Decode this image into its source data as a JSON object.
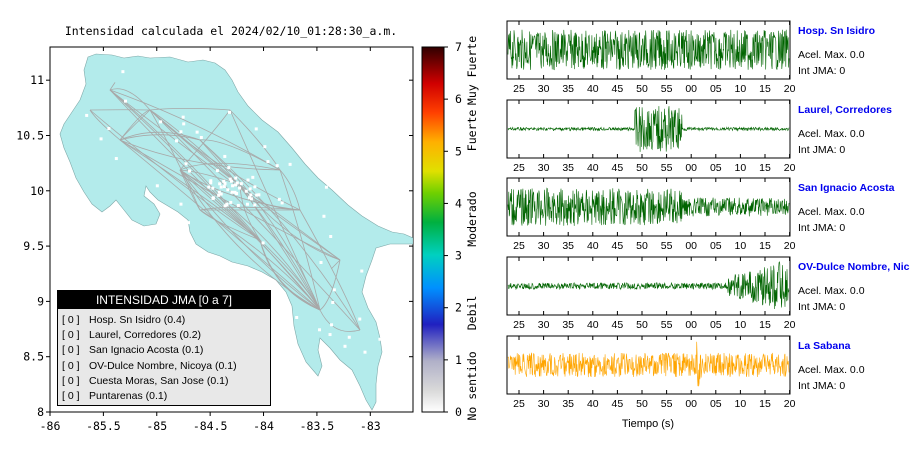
{
  "map": {
    "title": "Intensidad calculada el 2024/02/10_01:28:30_a.m.",
    "lon_ticks": [
      "-86",
      "-85.5",
      "-85",
      "-84.5",
      "-84",
      "-83.5",
      "-83"
    ],
    "lat_ticks": [
      "8",
      "8.5",
      "9",
      "9.5",
      "10",
      "10.5",
      "11"
    ],
    "land_color": "#b3ebeb",
    "road_color": "#b0b0b0"
  },
  "legend": {
    "header": "INTENSIDAD JMA [0 a 7]",
    "items": [
      {
        "code": "[ 0 ]",
        "label": "Hosp. Sn Isidro (0.4)"
      },
      {
        "code": "[ 0 ]",
        "label": "Laurel, Corredores (0.2)"
      },
      {
        "code": "[ 0 ]",
        "label": "San Ignacio Acosta (0.1)"
      },
      {
        "code": "[ 0 ]",
        "label": "OV-Dulce Nombre, Nicoya (0.1)"
      },
      {
        "code": "[ 0 ]",
        "label": "Cuesta Moras, San Jose (0.1)"
      },
      {
        "code": "[ 0 ]",
        "label": "Puntarenas (0.1)"
      }
    ]
  },
  "colorbar": {
    "ticks": [
      "0",
      "1",
      "2",
      "3",
      "4",
      "5",
      "6",
      "7"
    ],
    "labels": [
      "No sentido",
      "Debil",
      "Moderado",
      "Fuerte",
      "Muy Fuerte"
    ]
  },
  "waveforms": {
    "x_ticks": [
      "25",
      "30",
      "35",
      "40",
      "45",
      "50",
      "55",
      "00",
      "05",
      "10",
      "15",
      "20"
    ],
    "xlabel": "Tiempo (s)",
    "stations": [
      {
        "name": "Hosp. Sn Isidro",
        "acel": "Acel. Max. 0.0",
        "int": "Int JMA: 0",
        "color": "#006400"
      },
      {
        "name": "Laurel, Corredores",
        "acel": "Acel. Max. 0.0",
        "int": "Int JMA: 0",
        "color": "#006400"
      },
      {
        "name": "San Ignacio Acosta",
        "acel": "Acel. Max. 0.0",
        "int": "Int JMA: 0",
        "color": "#006400"
      },
      {
        "name": "OV-Dulce Nombre, Nicoya",
        "acel": "Acel. Max. 0.0",
        "int": "Int JMA: 0",
        "color": "#006400"
      },
      {
        "name": "La Sabana",
        "acel": "Acel. Max. 0.0",
        "int": "Int JMA: 0",
        "color": "#ffa500"
      }
    ],
    "station_name_color": "#0000ee"
  },
  "chart_data": [
    {
      "type": "scatter",
      "title": "Intensidad calculada el 2024/02/10_01:28:30_a.m.",
      "xlabel": "",
      "ylabel": "",
      "xlim": [
        -86,
        -82.6
      ],
      "ylim": [
        8,
        11.3
      ],
      "series": [
        {
          "name": "Hosp. Sn Isidro (0.4)",
          "intensity": 0
        },
        {
          "name": "Laurel, Corredores (0.2)",
          "intensity": 0
        },
        {
          "name": "San Ignacio Acosta (0.1)",
          "intensity": 0
        },
        {
          "name": "OV-Dulce Nombre, Nicoya (0.1)",
          "intensity": 0
        },
        {
          "name": "Cuesta Moras, San Jose (0.1)",
          "intensity": 0
        },
        {
          "name": "Puntarenas (0.1)",
          "intensity": 0
        }
      ],
      "legend": "bottom-left"
    },
    {
      "type": "heatmap",
      "title": "",
      "ylim": [
        0,
        7
      ],
      "ticks": [
        0,
        1,
        2,
        3,
        4,
        5,
        6,
        7
      ],
      "categories": [
        "No sentido",
        "Debil",
        "Moderado",
        "Fuerte",
        "Muy Fuerte"
      ]
    },
    {
      "type": "line",
      "title": "",
      "xlabel": "Tiempo (s)",
      "x_tick_labels": [
        "25",
        "30",
        "35",
        "40",
        "45",
        "50",
        "55",
        "00",
        "05",
        "10",
        "15",
        "20"
      ],
      "series": [
        {
          "name": "Hosp. Sn Isidro",
          "acel_max": 0.0,
          "int_jma": 0
        },
        {
          "name": "Laurel, Corredores",
          "acel_max": 0.0,
          "int_jma": 0
        },
        {
          "name": "San Ignacio Acosta",
          "acel_max": 0.0,
          "int_jma": 0
        },
        {
          "name": "OV-Dulce Nombre, Nicoya",
          "acel_max": 0.0,
          "int_jma": 0
        },
        {
          "name": "La Sabana",
          "acel_max": 0.0,
          "int_jma": 0
        }
      ]
    }
  ]
}
